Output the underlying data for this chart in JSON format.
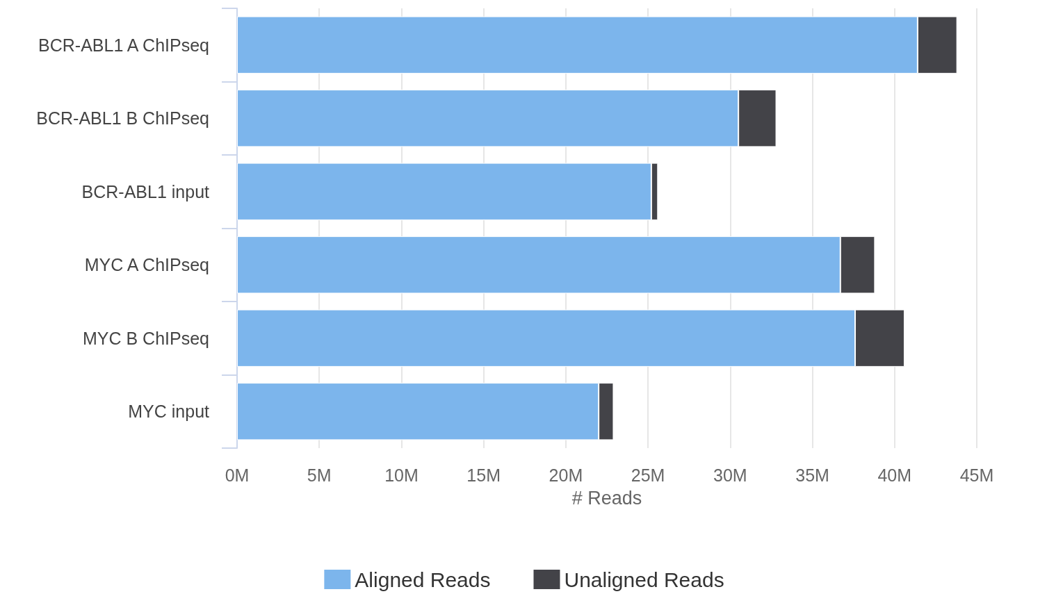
{
  "chart_data": {
    "type": "bar",
    "orientation": "horizontal",
    "stacked": true,
    "categories": [
      "BCR-ABL1 A ChIPseq",
      "BCR-ABL1 B ChIPseq",
      "BCR-ABL1 input",
      "MYC A ChIPseq",
      "MYC B ChIPseq",
      "MYC input"
    ],
    "series": [
      {
        "name": "Aligned Reads",
        "color": "#7cb5ec",
        "values": [
          41.4,
          30.5,
          25.2,
          36.7,
          37.6,
          22.0
        ]
      },
      {
        "name": "Unaligned Reads",
        "color": "#434348",
        "values": [
          2.4,
          2.3,
          0.4,
          2.1,
          3.0,
          0.9
        ]
      }
    ],
    "xlabel": "# Reads",
    "xlim": [
      0,
      45
    ],
    "xticks": [
      {
        "value": 0,
        "label": "0M"
      },
      {
        "value": 5,
        "label": "5M"
      },
      {
        "value": 10,
        "label": "10M"
      },
      {
        "value": 15,
        "label": "15M"
      },
      {
        "value": 20,
        "label": "20M"
      },
      {
        "value": 25,
        "label": "25M"
      },
      {
        "value": 30,
        "label": "30M"
      },
      {
        "value": 35,
        "label": "35M"
      },
      {
        "value": 40,
        "label": "40M"
      },
      {
        "value": 45,
        "label": "45M"
      }
    ],
    "grid": "x",
    "legend": "bottom"
  }
}
